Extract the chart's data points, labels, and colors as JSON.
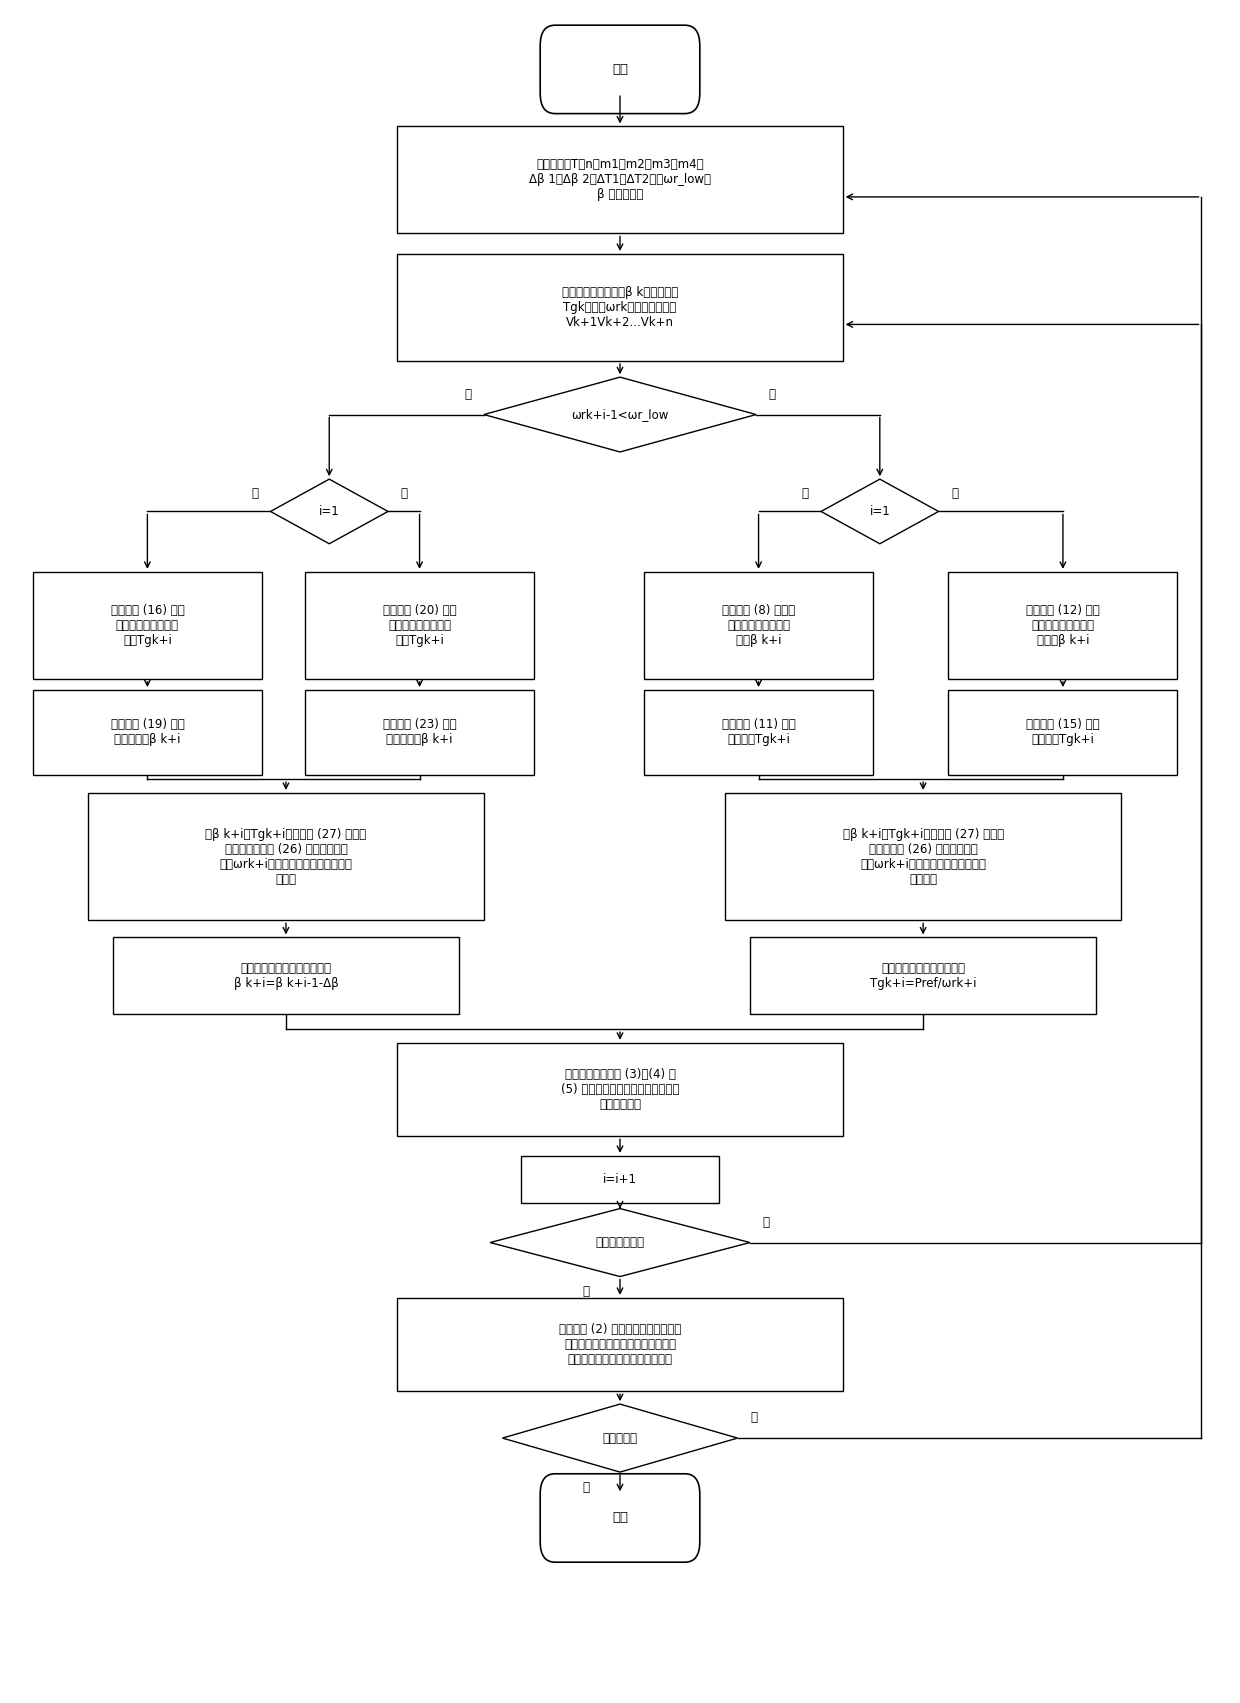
{
  "bg_color": "#ffffff",
  "box_edge": "#000000",
  "text_color": "#000000",
  "font_size": 8.5,
  "start_label": "开始",
  "end_label": "结束",
  "init_label": "初始化参数T、n、m1、m2、m3、m4、\nΔβ 1、Δβ 2、ΔT1、ΔT2以及ωr_low与\nβ 的关系表等",
  "acquire_label": "获取当前给定桨距角β k、给定转矩\nTgk、转速ωrk及提前测量风速\nVk+1Vk+2...Vk+n",
  "diamond1_label": "ωrk+i-1<ωr_low",
  "d_left_label": "i=1",
  "d_right_label": "i=1",
  "box_ll1": "根据公式 (16) 给定\n候选输出转矩有限控\n制集Tgk+i",
  "box_lm1": "根据公式 (20) 给定\n候选输出转矩有限控\n制集Tgk+i",
  "box_rl1": "根据公式 (8) 给定候\n选输出桨距角有限控\n制集β k+i",
  "box_rr1": "根据公式 (12) 给定\n候选输出桨距角有限\n控制集β k+i",
  "box_ll2": "根据公式 (19) 得到\n给定桨距角β k+i",
  "box_lm2": "根据公式 (23) 得到\n给定桨距角β k+i",
  "box_rl2": "根据公式 (11) 得到\n给定转矩Tgk+i",
  "box_rr2": "根据公式 (15) 得到\n给定转矩Tgk+i",
  "merge_left": "将β k+i、Tgk+i以及公式 (27) 代入转\n速计算公式公式 (26) 计算得到预测\n转速ωrk+i，并将其存储在下一预测周\n期使用",
  "merge_right": "将β k+i、Tgk+i以及公式 (27) 代入转\n速计算公式 (26) 计算得到预测\n转速ωrk+i，并将其存储在下一预测\n周期使用",
  "set_left": "候选桨距角有限控制集设置为\nβ k+i=β k+i-1-Δβ",
  "set_right": "候选转矩有限控制集设置为\nTgk+i=Pref/ωrk+i",
  "constraint": "根据约束条件公式 (3)、(4) 和\n(5) 对桨距角，转矩序列元素进行限\n幅或剔除处理",
  "iter_label": "i=i+1",
  "pred_label": "预测周期结束？",
  "optimal_label": "根据公式 (2) 计算成本函数得到最优\n序列，将最优给定桨距角序列与转矩\n序列的第一个元素作为控制器输出",
  "end_ctrl_label": "控制结束？",
  "yes": "是",
  "no": "否"
}
